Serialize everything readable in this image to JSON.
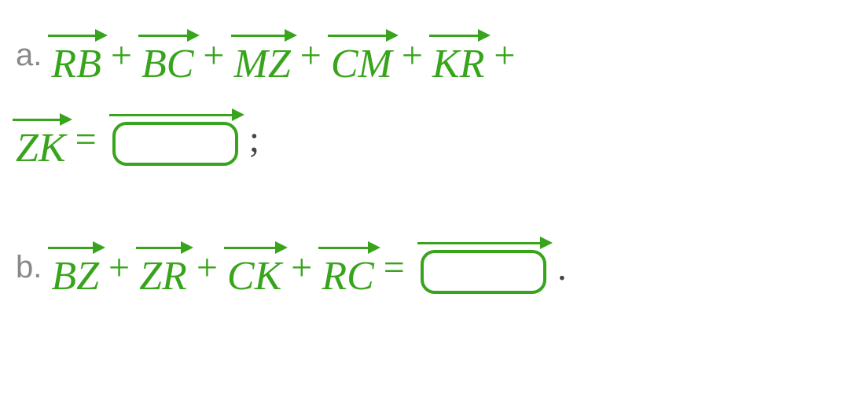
{
  "colors": {
    "math": "#38a41c",
    "label": "#888888",
    "punct": "#444444",
    "background": "#ffffff"
  },
  "typography": {
    "math_fontsize": 52,
    "label_fontsize": 40,
    "math_font": "Georgia, Times New Roman, serif",
    "label_font": "Arial, sans-serif",
    "math_style": "italic"
  },
  "blank": {
    "width": 160,
    "height": 56,
    "border_width": 4,
    "border_radius": 18,
    "border_color": "#38a41c"
  },
  "problems": {
    "a": {
      "label": "a.",
      "terms_line1": [
        "RB",
        "BC",
        "MZ",
        "CM",
        "KR"
      ],
      "terms_line2": [
        "ZK"
      ],
      "op_plus": "+",
      "op_eq": "=",
      "vec_RB": "RB",
      "vec_BC": "BC",
      "vec_MZ": "MZ",
      "vec_CM": "CM",
      "vec_KR": "KR",
      "vec_ZK": "ZK",
      "trailing_punct": ";"
    },
    "b": {
      "label": "b.",
      "terms": [
        "BZ",
        "ZR",
        "CK",
        "RC"
      ],
      "op_plus": "+",
      "op_eq": "=",
      "vec_BZ": "BZ",
      "vec_ZR": "ZR",
      "vec_CK": "CK",
      "vec_RC": "RC",
      "trailing_punct": "."
    }
  }
}
